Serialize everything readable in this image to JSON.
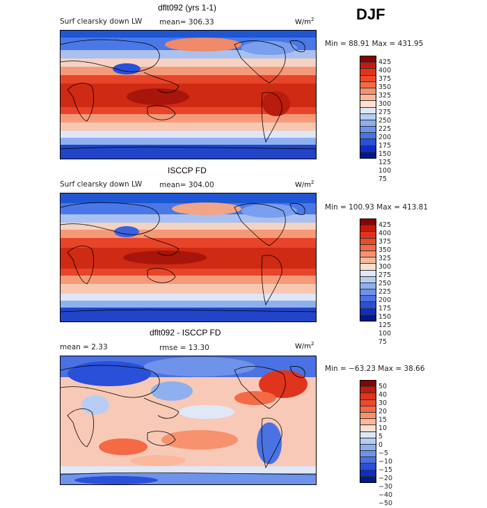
{
  "season": "DJF",
  "panels": [
    {
      "title": "dflt092 (yrs 1-1)",
      "left_label": "Surf clearsky down LW",
      "stat1": "mean= 306.33",
      "stat2": "",
      "units": "W/m",
      "units_sup": "2",
      "minmax": "Min =  88.91 Max = 431.95",
      "cb_levels": [
        "425",
        "400",
        "375",
        "350",
        "325",
        "300",
        "275",
        "250",
        "225",
        "200",
        "175",
        "150",
        "125",
        "100",
        "75"
      ],
      "cb_colors": [
        "#8b0000",
        "#c41a0b",
        "#e0341c",
        "#ec4a2a",
        "#f36a45",
        "#f8926e",
        "#fbb89c",
        "#fde0d0",
        "#dfe8f7",
        "#b8cdf4",
        "#8fb0ef",
        "#6f93ea",
        "#4a72e3",
        "#2a4fd8",
        "#0f2cc5",
        "#001a8c"
      ]
    },
    {
      "title": "ISCCP FD",
      "left_label": "Surf clearsky down LW",
      "stat1": "mean= 304.00",
      "stat2": "",
      "units": "W/m",
      "units_sup": "2",
      "minmax": "Min = 100.93 Max = 413.81",
      "cb_levels": [
        "425",
        "400",
        "375",
        "350",
        "325",
        "300",
        "275",
        "250",
        "225",
        "200",
        "175",
        "150",
        "125",
        "100",
        "75"
      ],
      "cb_colors": [
        "#8b0000",
        "#c41a0b",
        "#e0341c",
        "#ec4a2a",
        "#f36a45",
        "#f8926e",
        "#fbb89c",
        "#fde0d0",
        "#dfe8f7",
        "#b8cdf4",
        "#8fb0ef",
        "#6f93ea",
        "#4a72e3",
        "#2a4fd8",
        "#0f2cc5",
        "#001a8c"
      ]
    },
    {
      "title": "dflt092 - ISCCP FD",
      "left_label": "mean =   2.33",
      "stat1": "",
      "stat2": "rmse =  13.30",
      "units": "W/m",
      "units_sup": "2",
      "minmax": "Min = −63.23 Max =  38.66",
      "cb_levels": [
        "50",
        "40",
        "30",
        "20",
        "15",
        "10",
        "5",
        "0",
        "−5",
        "−10",
        "−15",
        "−20",
        "−30",
        "−40",
        "−50"
      ],
      "cb_colors": [
        "#8b0000",
        "#c41a0b",
        "#e0341c",
        "#ec4a2a",
        "#f36a45",
        "#f8926e",
        "#fbb89c",
        "#fde0d0",
        "#dfe8f7",
        "#b8cdf4",
        "#8fb0ef",
        "#6f93ea",
        "#4a72e3",
        "#2a4fd8",
        "#0f2cc5",
        "#001a8c"
      ]
    }
  ]
}
